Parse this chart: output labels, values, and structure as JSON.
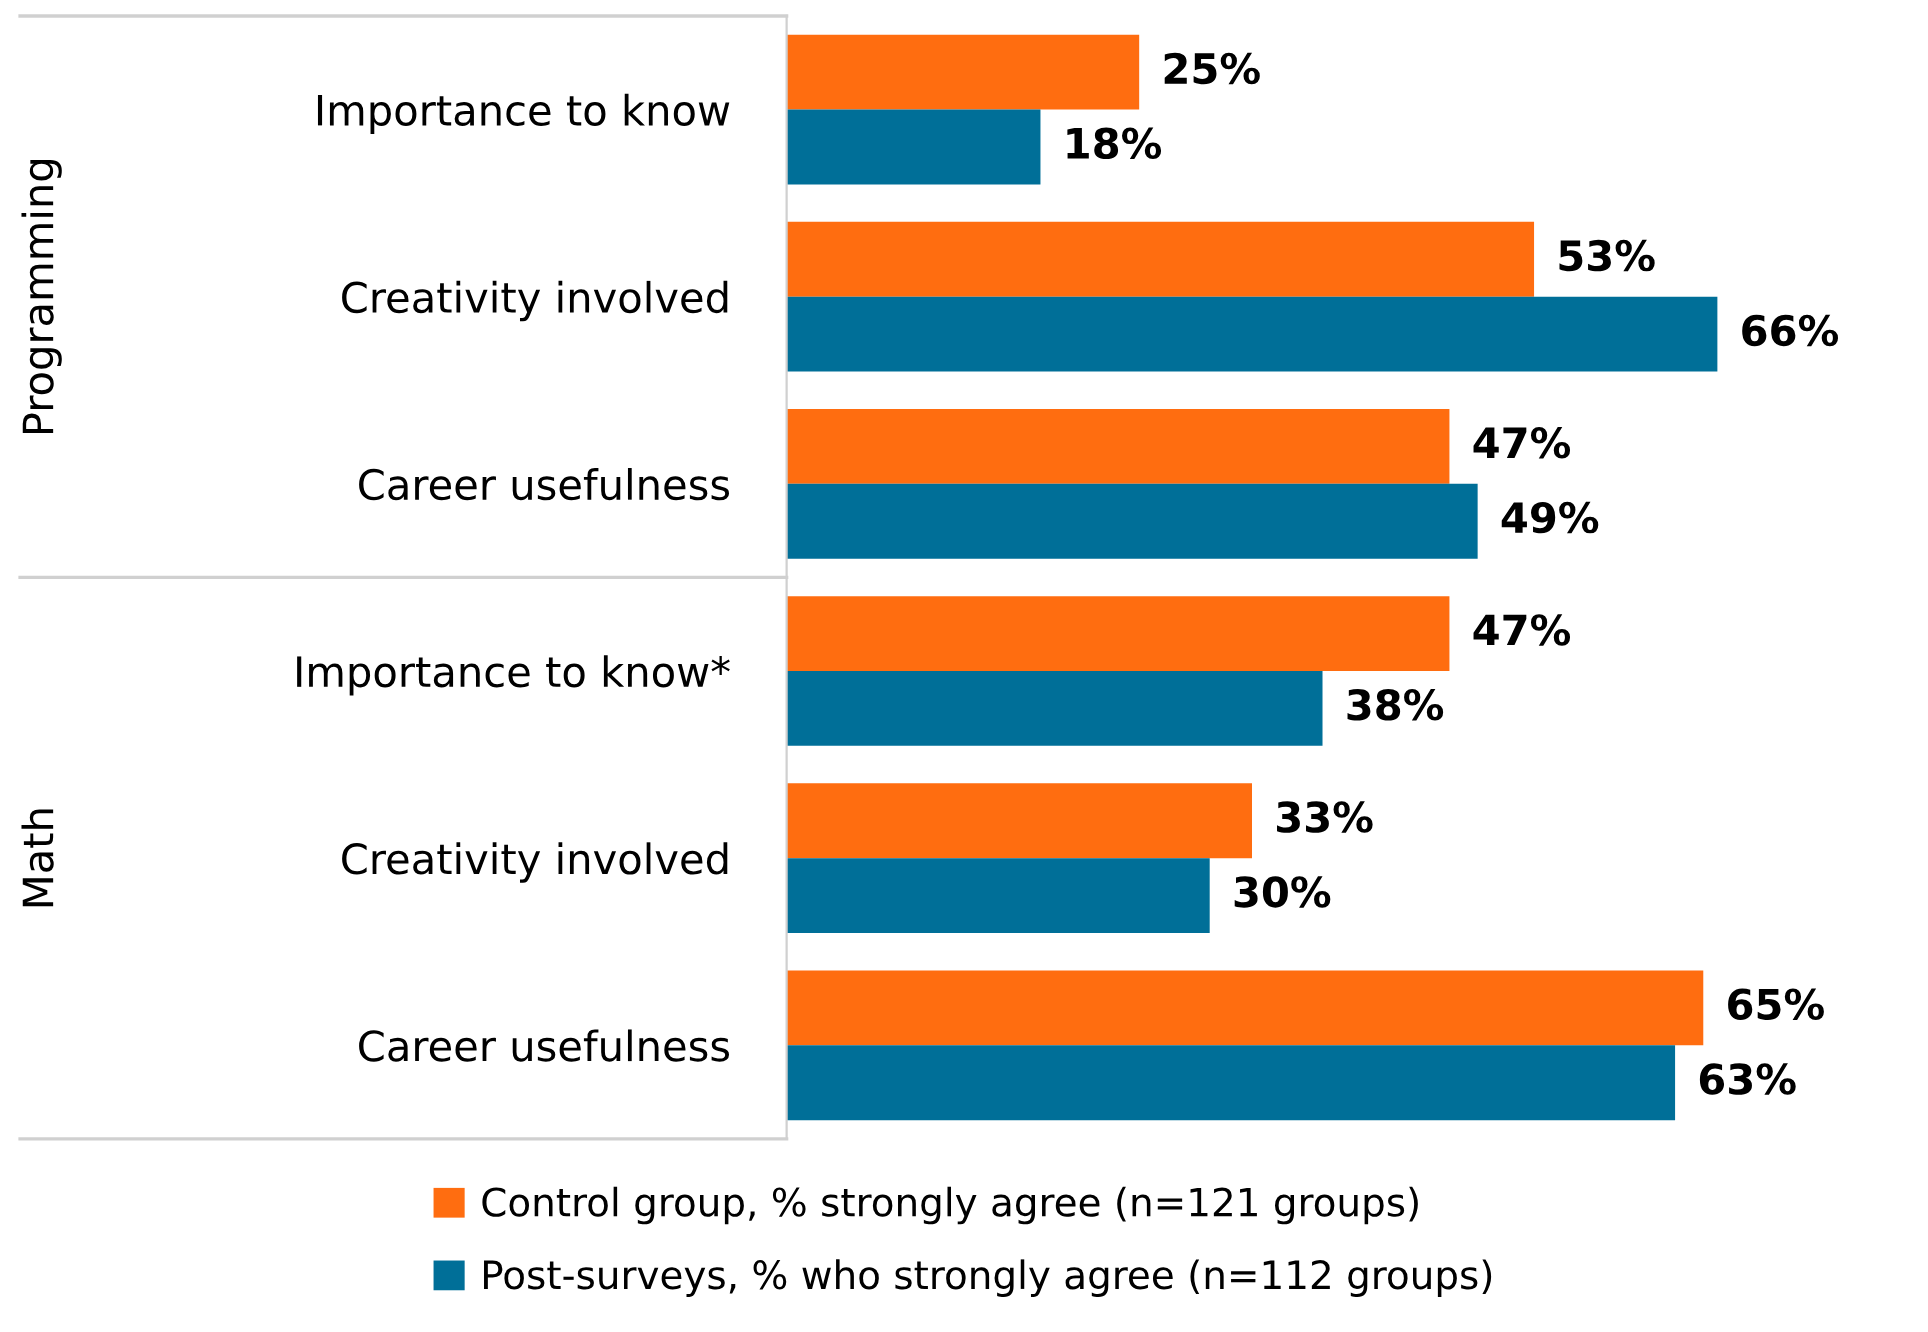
{
  "chart_data": {
    "type": "bar",
    "orientation": "horizontal",
    "categories": [
      "Importance to know",
      "Creativity involved",
      "Career usefulness",
      "Importance to know*",
      "Creativity involved",
      "Career usefulness"
    ],
    "series": [
      {
        "name": "Control group, % strongly agree (n=121 groups)",
        "color": "#ff6d10",
        "values": [
          25,
          53,
          47,
          47,
          33,
          65
        ],
        "value_labels": [
          "25%",
          "53%",
          "47%",
          "47%",
          "33%",
          "65%"
        ]
      },
      {
        "name": "Post-surveys, % who strongly agree (n=112 groups)",
        "color": "#006f98",
        "values": [
          18,
          66,
          49,
          38,
          30,
          63
        ],
        "value_labels": [
          "18%",
          "66%",
          "49%",
          "38%",
          "30%",
          "63%"
        ]
      }
    ],
    "annotations": [
      "Programming",
      "Math"
    ],
    "legend": "bottom",
    "grid": false
  }
}
